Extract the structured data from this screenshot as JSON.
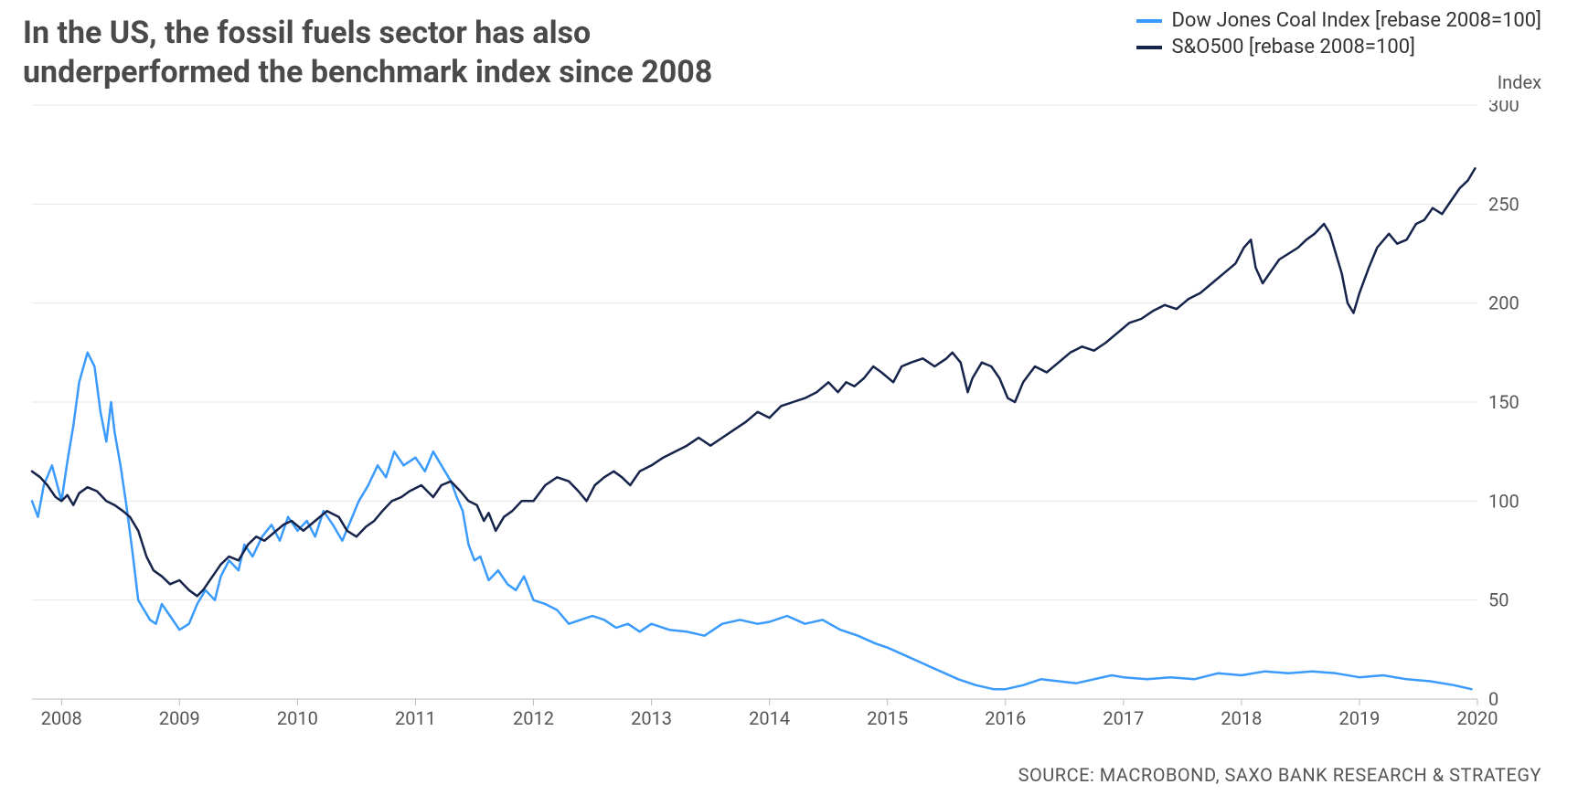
{
  "title_line1": "In the US, the fossil fuels sector has also",
  "title_line2": "underperformed the benchmark index since 2008",
  "legend": {
    "series1": "Dow Jones Coal Index [rebase 2008=100]",
    "series2": "S&O500 [rebase 2008=100]"
  },
  "y_axis_title": "Index",
  "source": "SOURCE: MACROBOND, SAXO BANK RESEARCH & STRATEGY",
  "chart": {
    "type": "line",
    "background_color": "#ffffff",
    "grid_color": "#e6e6e6",
    "axis_color": "#bdbdbd",
    "tick_label_color": "#555555",
    "tick_label_fontsize": 20,
    "title_color": "#4a4a4a",
    "title_fontsize": 34,
    "x": {
      "min": 2007.75,
      "max": 2020.0,
      "ticks": [
        2008,
        2009,
        2010,
        2011,
        2012,
        2013,
        2014,
        2015,
        2016,
        2017,
        2018,
        2019,
        2020
      ]
    },
    "y": {
      "min": 0,
      "max": 300,
      "ticks": [
        0,
        50,
        100,
        150,
        200,
        250,
        300
      ]
    },
    "series": [
      {
        "name": "coal",
        "color": "#3a9bfc",
        "line_width": 2.5,
        "points": [
          [
            2007.75,
            100
          ],
          [
            2007.8,
            92
          ],
          [
            2007.85,
            108
          ],
          [
            2007.92,
            118
          ],
          [
            2008.0,
            100
          ],
          [
            2008.05,
            120
          ],
          [
            2008.1,
            138
          ],
          [
            2008.15,
            160
          ],
          [
            2008.22,
            175
          ],
          [
            2008.28,
            168
          ],
          [
            2008.33,
            145
          ],
          [
            2008.38,
            130
          ],
          [
            2008.42,
            150
          ],
          [
            2008.45,
            135
          ],
          [
            2008.5,
            118
          ],
          [
            2008.55,
            98
          ],
          [
            2008.6,
            75
          ],
          [
            2008.65,
            50
          ],
          [
            2008.7,
            45
          ],
          [
            2008.75,
            40
          ],
          [
            2008.8,
            38
          ],
          [
            2008.85,
            48
          ],
          [
            2008.92,
            42
          ],
          [
            2009.0,
            35
          ],
          [
            2009.08,
            38
          ],
          [
            2009.15,
            48
          ],
          [
            2009.22,
            55
          ],
          [
            2009.3,
            50
          ],
          [
            2009.35,
            62
          ],
          [
            2009.42,
            70
          ],
          [
            2009.5,
            65
          ],
          [
            2009.55,
            78
          ],
          [
            2009.62,
            72
          ],
          [
            2009.7,
            82
          ],
          [
            2009.78,
            88
          ],
          [
            2009.85,
            80
          ],
          [
            2009.92,
            92
          ],
          [
            2010.0,
            85
          ],
          [
            2010.08,
            90
          ],
          [
            2010.15,
            82
          ],
          [
            2010.22,
            95
          ],
          [
            2010.3,
            88
          ],
          [
            2010.38,
            80
          ],
          [
            2010.45,
            90
          ],
          [
            2010.52,
            100
          ],
          [
            2010.6,
            108
          ],
          [
            2010.68,
            118
          ],
          [
            2010.75,
            112
          ],
          [
            2010.82,
            125
          ],
          [
            2010.9,
            118
          ],
          [
            2011.0,
            122
          ],
          [
            2011.08,
            115
          ],
          [
            2011.15,
            125
          ],
          [
            2011.22,
            118
          ],
          [
            2011.3,
            110
          ],
          [
            2011.35,
            102
          ],
          [
            2011.4,
            95
          ],
          [
            2011.45,
            78
          ],
          [
            2011.5,
            70
          ],
          [
            2011.55,
            72
          ],
          [
            2011.62,
            60
          ],
          [
            2011.7,
            65
          ],
          [
            2011.78,
            58
          ],
          [
            2011.85,
            55
          ],
          [
            2011.92,
            62
          ],
          [
            2012.0,
            50
          ],
          [
            2012.1,
            48
          ],
          [
            2012.2,
            45
          ],
          [
            2012.3,
            38
          ],
          [
            2012.4,
            40
          ],
          [
            2012.5,
            42
          ],
          [
            2012.6,
            40
          ],
          [
            2012.7,
            36
          ],
          [
            2012.8,
            38
          ],
          [
            2012.9,
            34
          ],
          [
            2013.0,
            38
          ],
          [
            2013.15,
            35
          ],
          [
            2013.3,
            34
          ],
          [
            2013.45,
            32
          ],
          [
            2013.6,
            38
          ],
          [
            2013.75,
            40
          ],
          [
            2013.9,
            38
          ],
          [
            2014.0,
            39
          ],
          [
            2014.15,
            42
          ],
          [
            2014.3,
            38
          ],
          [
            2014.45,
            40
          ],
          [
            2014.6,
            35
          ],
          [
            2014.75,
            32
          ],
          [
            2014.9,
            28
          ],
          [
            2015.0,
            26
          ],
          [
            2015.15,
            22
          ],
          [
            2015.3,
            18
          ],
          [
            2015.45,
            14
          ],
          [
            2015.6,
            10
          ],
          [
            2015.75,
            7
          ],
          [
            2015.9,
            5
          ],
          [
            2016.0,
            5
          ],
          [
            2016.15,
            7
          ],
          [
            2016.3,
            10
          ],
          [
            2016.45,
            9
          ],
          [
            2016.6,
            8
          ],
          [
            2016.75,
            10
          ],
          [
            2016.9,
            12
          ],
          [
            2017.0,
            11
          ],
          [
            2017.2,
            10
          ],
          [
            2017.4,
            11
          ],
          [
            2017.6,
            10
          ],
          [
            2017.8,
            13
          ],
          [
            2018.0,
            12
          ],
          [
            2018.2,
            14
          ],
          [
            2018.4,
            13
          ],
          [
            2018.6,
            14
          ],
          [
            2018.8,
            13
          ],
          [
            2019.0,
            11
          ],
          [
            2019.2,
            12
          ],
          [
            2019.4,
            10
          ],
          [
            2019.6,
            9
          ],
          [
            2019.8,
            7
          ],
          [
            2019.95,
            5
          ]
        ]
      },
      {
        "name": "sp500",
        "color": "#16234a",
        "line_width": 2.5,
        "points": [
          [
            2007.75,
            115
          ],
          [
            2007.82,
            112
          ],
          [
            2007.88,
            108
          ],
          [
            2007.95,
            102
          ],
          [
            2008.0,
            100
          ],
          [
            2008.05,
            103
          ],
          [
            2008.1,
            98
          ],
          [
            2008.15,
            104
          ],
          [
            2008.22,
            107
          ],
          [
            2008.3,
            105
          ],
          [
            2008.38,
            100
          ],
          [
            2008.45,
            98
          ],
          [
            2008.52,
            95
          ],
          [
            2008.58,
            92
          ],
          [
            2008.65,
            85
          ],
          [
            2008.72,
            72
          ],
          [
            2008.78,
            65
          ],
          [
            2008.85,
            62
          ],
          [
            2008.92,
            58
          ],
          [
            2009.0,
            60
          ],
          [
            2009.08,
            55
          ],
          [
            2009.15,
            52
          ],
          [
            2009.2,
            55
          ],
          [
            2009.28,
            62
          ],
          [
            2009.35,
            68
          ],
          [
            2009.42,
            72
          ],
          [
            2009.5,
            70
          ],
          [
            2009.58,
            78
          ],
          [
            2009.65,
            82
          ],
          [
            2009.72,
            80
          ],
          [
            2009.8,
            84
          ],
          [
            2009.88,
            88
          ],
          [
            2009.95,
            90
          ],
          [
            2010.05,
            85
          ],
          [
            2010.15,
            90
          ],
          [
            2010.25,
            95
          ],
          [
            2010.35,
            92
          ],
          [
            2010.42,
            85
          ],
          [
            2010.5,
            82
          ],
          [
            2010.58,
            87
          ],
          [
            2010.65,
            90
          ],
          [
            2010.72,
            95
          ],
          [
            2010.8,
            100
          ],
          [
            2010.88,
            102
          ],
          [
            2010.95,
            105
          ],
          [
            2011.05,
            108
          ],
          [
            2011.15,
            102
          ],
          [
            2011.22,
            108
          ],
          [
            2011.3,
            110
          ],
          [
            2011.38,
            105
          ],
          [
            2011.45,
            100
          ],
          [
            2011.52,
            98
          ],
          [
            2011.58,
            90
          ],
          [
            2011.62,
            94
          ],
          [
            2011.68,
            85
          ],
          [
            2011.75,
            92
          ],
          [
            2011.82,
            95
          ],
          [
            2011.9,
            100
          ],
          [
            2012.0,
            100
          ],
          [
            2012.1,
            108
          ],
          [
            2012.2,
            112
          ],
          [
            2012.3,
            110
          ],
          [
            2012.38,
            105
          ],
          [
            2012.45,
            100
          ],
          [
            2012.52,
            108
          ],
          [
            2012.6,
            112
          ],
          [
            2012.68,
            115
          ],
          [
            2012.75,
            112
          ],
          [
            2012.82,
            108
          ],
          [
            2012.9,
            115
          ],
          [
            2013.0,
            118
          ],
          [
            2013.1,
            122
          ],
          [
            2013.2,
            125
          ],
          [
            2013.3,
            128
          ],
          [
            2013.4,
            132
          ],
          [
            2013.5,
            128
          ],
          [
            2013.6,
            132
          ],
          [
            2013.7,
            136
          ],
          [
            2013.8,
            140
          ],
          [
            2013.9,
            145
          ],
          [
            2014.0,
            142
          ],
          [
            2014.1,
            148
          ],
          [
            2014.2,
            150
          ],
          [
            2014.3,
            152
          ],
          [
            2014.4,
            155
          ],
          [
            2014.5,
            160
          ],
          [
            2014.58,
            155
          ],
          [
            2014.65,
            160
          ],
          [
            2014.72,
            158
          ],
          [
            2014.8,
            162
          ],
          [
            2014.88,
            168
          ],
          [
            2014.95,
            165
          ],
          [
            2015.05,
            160
          ],
          [
            2015.12,
            168
          ],
          [
            2015.2,
            170
          ],
          [
            2015.3,
            172
          ],
          [
            2015.4,
            168
          ],
          [
            2015.5,
            172
          ],
          [
            2015.55,
            175
          ],
          [
            2015.62,
            170
          ],
          [
            2015.68,
            155
          ],
          [
            2015.72,
            162
          ],
          [
            2015.8,
            170
          ],
          [
            2015.88,
            168
          ],
          [
            2015.95,
            162
          ],
          [
            2016.02,
            152
          ],
          [
            2016.08,
            150
          ],
          [
            2016.15,
            160
          ],
          [
            2016.25,
            168
          ],
          [
            2016.35,
            165
          ],
          [
            2016.45,
            170
          ],
          [
            2016.55,
            175
          ],
          [
            2016.65,
            178
          ],
          [
            2016.75,
            176
          ],
          [
            2016.85,
            180
          ],
          [
            2016.95,
            185
          ],
          [
            2017.05,
            190
          ],
          [
            2017.15,
            192
          ],
          [
            2017.25,
            196
          ],
          [
            2017.35,
            199
          ],
          [
            2017.45,
            197
          ],
          [
            2017.55,
            202
          ],
          [
            2017.65,
            205
          ],
          [
            2017.75,
            210
          ],
          [
            2017.85,
            215
          ],
          [
            2017.95,
            220
          ],
          [
            2018.02,
            228
          ],
          [
            2018.08,
            232
          ],
          [
            2018.12,
            218
          ],
          [
            2018.18,
            210
          ],
          [
            2018.25,
            216
          ],
          [
            2018.32,
            222
          ],
          [
            2018.4,
            225
          ],
          [
            2018.48,
            228
          ],
          [
            2018.55,
            232
          ],
          [
            2018.62,
            235
          ],
          [
            2018.7,
            240
          ],
          [
            2018.75,
            235
          ],
          [
            2018.8,
            225
          ],
          [
            2018.85,
            215
          ],
          [
            2018.9,
            200
          ],
          [
            2018.95,
            195
          ],
          [
            2019.0,
            205
          ],
          [
            2019.08,
            218
          ],
          [
            2019.15,
            228
          ],
          [
            2019.25,
            235
          ],
          [
            2019.32,
            230
          ],
          [
            2019.4,
            232
          ],
          [
            2019.48,
            240
          ],
          [
            2019.55,
            242
          ],
          [
            2019.62,
            248
          ],
          [
            2019.7,
            245
          ],
          [
            2019.78,
            252
          ],
          [
            2019.85,
            258
          ],
          [
            2019.92,
            262
          ],
          [
            2019.98,
            268
          ]
        ]
      }
    ]
  }
}
